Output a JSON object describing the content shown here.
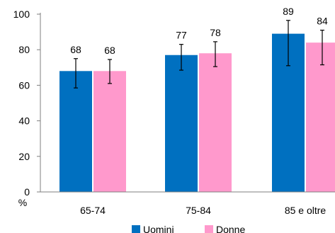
{
  "chart_data": {
    "type": "bar",
    "title": "",
    "xlabel": "",
    "ylabel": "%",
    "ylim": [
      0,
      100
    ],
    "yticks": [
      0,
      20,
      40,
      60,
      80,
      100
    ],
    "grid": false,
    "legend_position": "bottom",
    "categories": [
      "65-74",
      "75-84",
      "85 e oltre"
    ],
    "series": [
      {
        "name": "Uomini",
        "color": "#0070C0",
        "values": [
          68,
          77,
          89
        ],
        "error_low": [
          58.5,
          68.5,
          71
        ],
        "error_high": [
          75,
          83,
          96.5
        ]
      },
      {
        "name": "Donne",
        "color": "#FF99CC",
        "values": [
          68,
          78,
          84
        ],
        "error_low": [
          61,
          70.5,
          71.5
        ],
        "error_high": [
          74.5,
          84.5,
          91
        ]
      }
    ]
  }
}
